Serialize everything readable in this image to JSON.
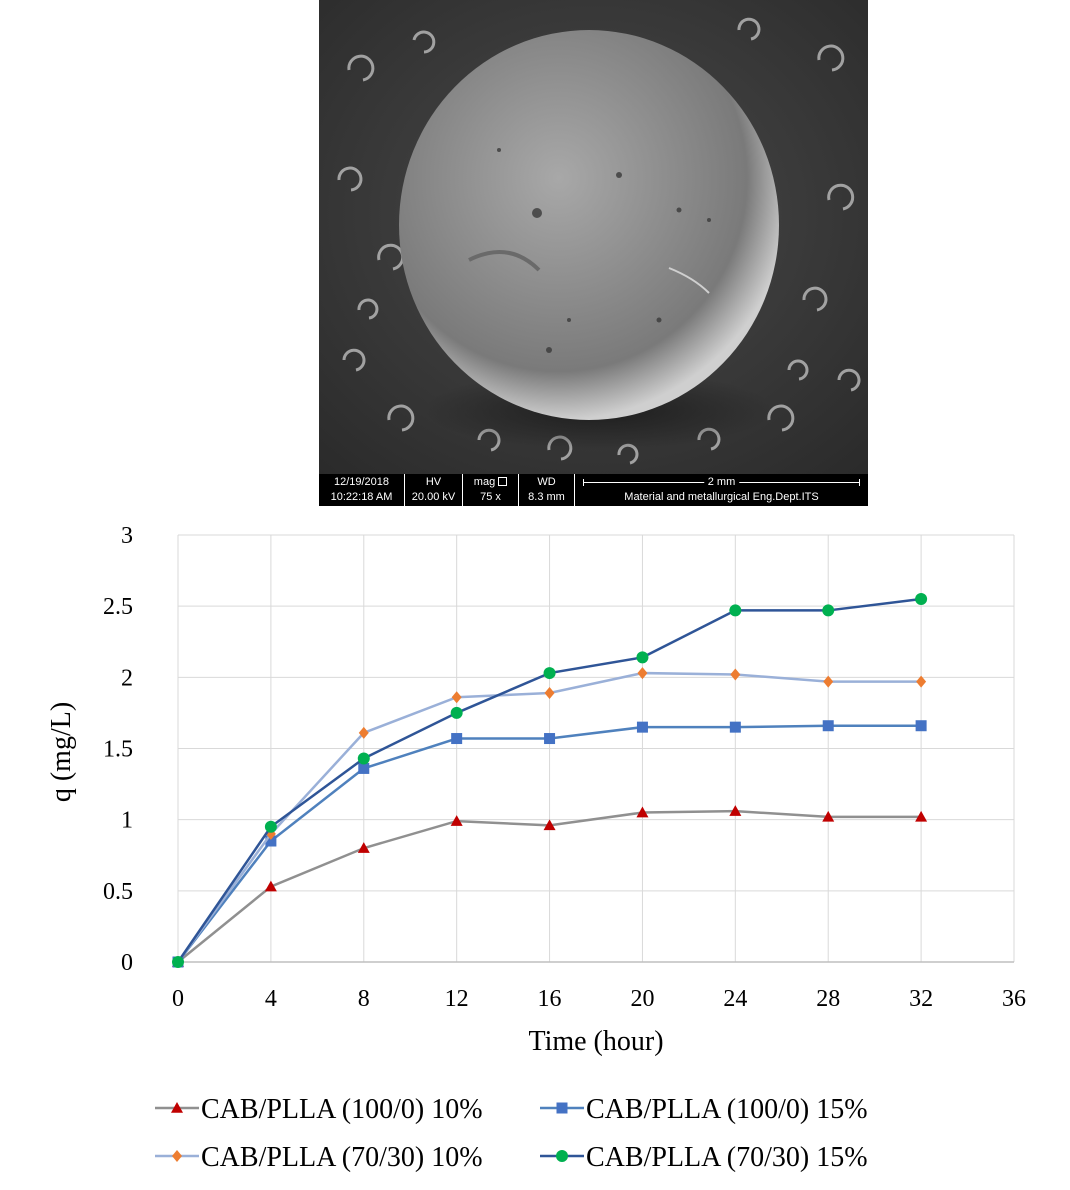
{
  "sem": {
    "date": "12/19/2018",
    "time": "10:22:18 AM",
    "hv_label": "HV",
    "hv_value": "20.00 kV",
    "mag_label": "mag",
    "mag_value": "75 x",
    "wd_label": "WD",
    "wd_value": "8.3 mm",
    "scale_label": "2 mm",
    "institution": "Material and metallurgical Eng.Dept.ITS"
  },
  "chart_data": {
    "type": "line",
    "title": "",
    "xlabel": "Time (hour)",
    "ylabel": "q (mg/L)",
    "xlim": [
      0,
      36
    ],
    "ylim": [
      0,
      3
    ],
    "x_ticks": [
      "0",
      "4",
      "8",
      "12",
      "16",
      "20",
      "24",
      "28",
      "32",
      "36"
    ],
    "y_ticks": [
      "0",
      "0.5",
      "1",
      "1.5",
      "2",
      "2.5",
      "3"
    ],
    "grid": true,
    "legend_position": "bottom",
    "x": [
      0,
      4,
      8,
      12,
      16,
      20,
      24,
      28,
      32
    ],
    "series": [
      {
        "name": "CAB/PLLA (100/0) 10%",
        "values": [
          0,
          0.53,
          0.8,
          0.99,
          0.96,
          1.05,
          1.06,
          1.02,
          1.02
        ],
        "line_color": "#909090",
        "marker_color": "#c00000",
        "marker": "triangle"
      },
      {
        "name": "CAB/PLLA (100/0) 15%",
        "values": [
          0,
          0.85,
          1.36,
          1.57,
          1.57,
          1.65,
          1.65,
          1.66,
          1.66
        ],
        "line_color": "#4f81bd",
        "marker_color": "#4472c4",
        "marker": "square"
      },
      {
        "name": "CAB/PLLA (70/30) 10%",
        "values": [
          0,
          0.9,
          1.61,
          1.86,
          1.89,
          2.03,
          2.02,
          1.97,
          1.97
        ],
        "line_color": "#9ab0d8",
        "marker_color": "#ed7d31",
        "marker": "diamond"
      },
      {
        "name": "CAB/PLLA (70/30) 15%",
        "values": [
          0,
          0.95,
          1.43,
          1.75,
          2.03,
          2.14,
          2.47,
          2.47,
          2.55
        ],
        "line_color": "#2f5597",
        "marker_color": "#00b050",
        "marker": "circle"
      }
    ]
  }
}
